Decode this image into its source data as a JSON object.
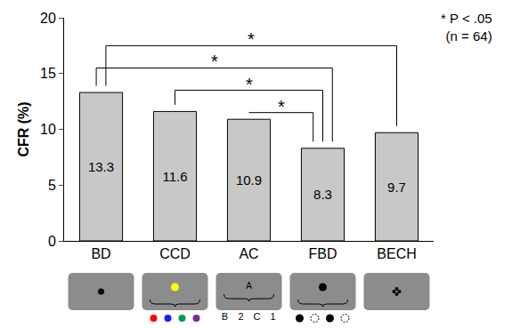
{
  "chart_data": {
    "type": "bar",
    "categories": [
      "BD",
      "CCD",
      "AC",
      "FBD",
      "BECH"
    ],
    "values": [
      13.3,
      11.6,
      10.9,
      8.3,
      9.7
    ],
    "color": "#c8c8c8",
    "y_label": "CFR (%)",
    "ylim": [
      0,
      20
    ],
    "yticks": [
      0,
      5,
      10,
      15,
      20
    ],
    "grid": false,
    "data_labels": true,
    "note_lines": [
      "* P < .05",
      "(n = 64)"
    ],
    "comparisons": [
      {
        "from": "AC",
        "to": "FBD",
        "label": "*"
      },
      {
        "from": "CCD",
        "to": "FBD",
        "label": "*"
      },
      {
        "from": "BD",
        "to": "FBD",
        "label": "*"
      },
      {
        "from": "BD",
        "to": "BECH",
        "label": "*"
      }
    ],
    "icon_texts": {
      "AC": {
        "top": "A",
        "bottom": [
          "B",
          "2",
          "C",
          "1"
        ]
      }
    }
  }
}
